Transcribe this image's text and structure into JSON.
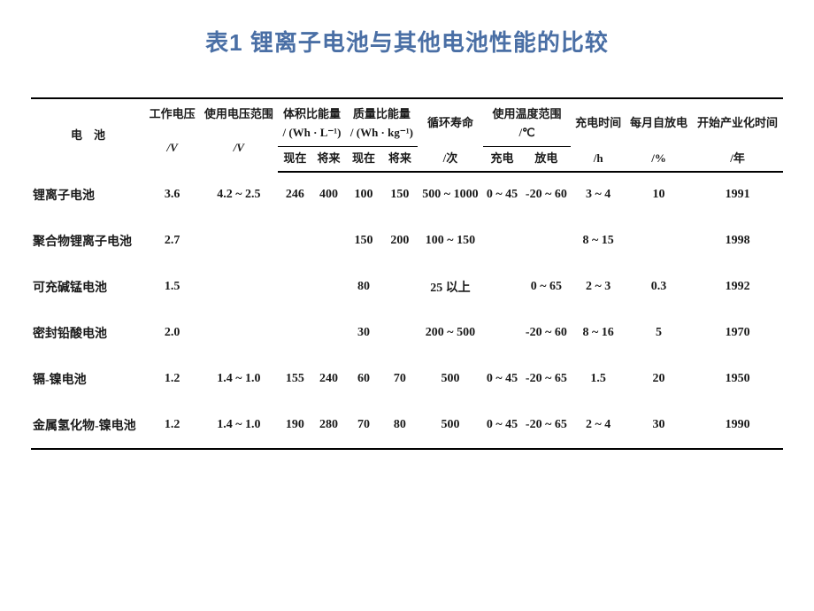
{
  "title": "表1 锂离子电池与其他电池性能的比较",
  "headers": {
    "battery": "电　池",
    "voltage": "工作电压",
    "voltage_unit": "/V",
    "voltage_range": "使用电压范围",
    "voltage_range_unit": "/V",
    "vol_energy": "体积比能量",
    "vol_energy_unit": "/ (Wh · L⁻¹)",
    "mass_energy": "质量比能量",
    "mass_energy_unit": "/ (Wh · kg⁻¹)",
    "now": "现在",
    "future": "将来",
    "cycles": "循环寿命",
    "cycles_unit": "/次",
    "temp_range": "使用温度范围",
    "temp_range_unit": "/℃",
    "charge": "充电",
    "discharge": "放电",
    "charge_time": "充电时间",
    "charge_time_unit": "/h",
    "self_discharge": "每月自放电",
    "self_discharge_unit": "/%",
    "industrial_time": "开始产业化时间",
    "industrial_time_unit": "/年"
  },
  "rows": [
    {
      "name": "锂离子电池",
      "voltage": "3.6",
      "vrange": "4.2 ~ 2.5",
      "vol_now": "246",
      "vol_future": "400",
      "mass_now": "100",
      "mass_future": "150",
      "cycles": "500 ~ 1000",
      "temp_charge": "0 ~ 45",
      "temp_discharge": "-20 ~ 60",
      "charge_time": "3 ~ 4",
      "self_discharge": "10",
      "year": "1991"
    },
    {
      "name": "聚合物锂离子电池",
      "voltage": "2.7",
      "vrange": "",
      "vol_now": "",
      "vol_future": "",
      "mass_now": "150",
      "mass_future": "200",
      "cycles": "100 ~ 150",
      "temp_charge": "",
      "temp_discharge": "",
      "charge_time": "8 ~ 15",
      "self_discharge": "",
      "year": "1998"
    },
    {
      "name": "可充碱锰电池",
      "voltage": "1.5",
      "vrange": "",
      "vol_now": "",
      "vol_future": "",
      "mass_now": "80",
      "mass_future": "",
      "cycles": "25 以上",
      "temp_charge": "",
      "temp_discharge": "0 ~ 65",
      "charge_time": "2 ~ 3",
      "self_discharge": "0.3",
      "year": "1992"
    },
    {
      "name": "密封铅酸电池",
      "voltage": "2.0",
      "vrange": "",
      "vol_now": "",
      "vol_future": "",
      "mass_now": "30",
      "mass_future": "",
      "cycles": "200 ~ 500",
      "temp_charge": "",
      "temp_discharge": "-20 ~ 60",
      "charge_time": "8 ~ 16",
      "self_discharge": "5",
      "year": "1970"
    },
    {
      "name": "镉-镍电池",
      "voltage": "1.2",
      "vrange": "1.4 ~ 1.0",
      "vol_now": "155",
      "vol_future": "240",
      "mass_now": "60",
      "mass_future": "70",
      "cycles": "500",
      "temp_charge": "0 ~ 45",
      "temp_discharge": "-20 ~ 65",
      "charge_time": "1.5",
      "self_discharge": "20",
      "year": "1950"
    },
    {
      "name": "金属氢化物-镍电池",
      "voltage": "1.2",
      "vrange": "1.4 ~ 1.0",
      "vol_now": "190",
      "vol_future": "280",
      "mass_now": "70",
      "mass_future": "80",
      "cycles": "500",
      "temp_charge": "0 ~ 45",
      "temp_discharge": "-20 ~ 65",
      "charge_time": "2 ~ 4",
      "self_discharge": "30",
      "year": "1990"
    }
  ],
  "styling": {
    "title_color": "#4a6fa5",
    "border_color": "#000000",
    "text_color": "#1a1a1a",
    "background": "#ffffff",
    "title_fontsize": 26,
    "header_fontsize": 13,
    "body_fontsize": 14
  }
}
